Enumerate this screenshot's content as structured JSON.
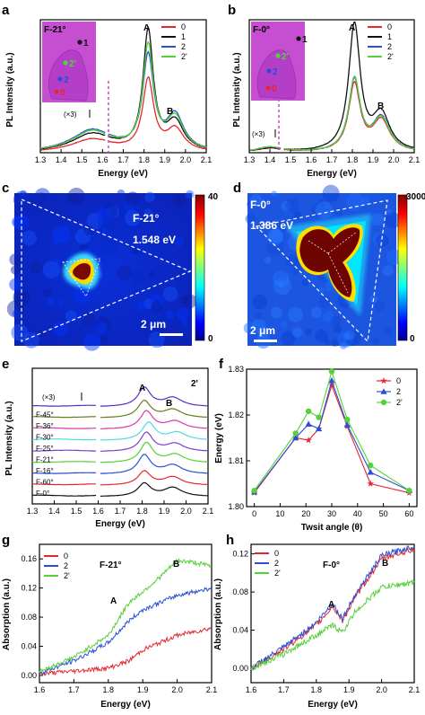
{
  "chart_data": [
    {
      "id": "a",
      "panel_label": "a",
      "type": "line",
      "sample_label": "F-21°",
      "xlabel": "Energy (eV)",
      "ylabel": "PL Intensity (a.u.)",
      "xlim": [
        1.3,
        2.1
      ],
      "xticks": [
        "1.3",
        "1.4",
        "1.5",
        "1.6",
        "1.7",
        "1.8",
        "1.9",
        "2.0",
        "2.1"
      ],
      "ylim": [
        0,
        1
      ],
      "scale_note": "(×3)",
      "break_x": 1.62,
      "peaks": [
        "A",
        "B"
      ],
      "legend": [
        "0",
        "1",
        "2",
        "2'"
      ],
      "series": [
        {
          "name": "0",
          "color": "#e8262e",
          "peaks": [
            [
              1.55,
              0.1,
              0.12
            ],
            [
              1.82,
              0.55,
              0.032
            ],
            [
              1.95,
              0.17,
              0.05
            ]
          ]
        },
        {
          "name": "1",
          "color": "#111111",
          "peaks": [
            [
              1.55,
              0.14,
              0.12
            ],
            [
              1.82,
              0.92,
              0.03
            ],
            [
              1.95,
              0.22,
              0.05
            ]
          ]
        },
        {
          "name": "2",
          "color": "#2a4fd6",
          "peaks": [
            [
              1.55,
              0.17,
              0.12
            ],
            [
              1.82,
              0.72,
              0.032
            ],
            [
              1.95,
              0.27,
              0.05
            ]
          ]
        },
        {
          "name": "2'",
          "color": "#55d13a",
          "peaks": [
            [
              1.55,
              0.16,
              0.12
            ],
            [
              1.82,
              0.8,
              0.031
            ],
            [
              1.95,
              0.25,
              0.05
            ]
          ]
        }
      ],
      "inset_points": [
        "1",
        "2'",
        "2",
        "0"
      ]
    },
    {
      "id": "b",
      "panel_label": "b",
      "type": "line",
      "sample_label": "F-0°",
      "xlabel": "Energy (eV)",
      "ylabel": "PL Intensity (a.u.)",
      "xlim": [
        1.3,
        2.1
      ],
      "xticks": [
        "1.3",
        "1.4",
        "1.5",
        "1.6",
        "1.7",
        "1.8",
        "1.9",
        "2.0",
        "2.1"
      ],
      "ylim": [
        0,
        1
      ],
      "scale_note": "(×3)",
      "break_x": 1.46,
      "peaks": [
        "A",
        "B"
      ],
      "legend": [
        "0",
        "1",
        "2",
        "2'"
      ],
      "series": [
        {
          "name": "0",
          "color": "#e8262e",
          "peaks": [
            [
              1.4,
              0.03,
              0.08
            ],
            [
              1.81,
              0.52,
              0.034
            ],
            [
              1.94,
              0.24,
              0.05
            ]
          ]
        },
        {
          "name": "1",
          "color": "#111111",
          "peaks": [
            [
              1.4,
              0.03,
              0.08
            ],
            [
              1.81,
              0.98,
              0.034
            ],
            [
              1.94,
              0.28,
              0.05
            ]
          ]
        },
        {
          "name": "2",
          "color": "#2a4fd6",
          "peaks": [
            [
              1.4,
              0.04,
              0.08
            ],
            [
              1.81,
              0.55,
              0.034
            ],
            [
              1.94,
              0.26,
              0.05
            ]
          ]
        },
        {
          "name": "2'",
          "color": "#55d13a",
          "peaks": [
            [
              1.4,
              0.04,
              0.08
            ],
            [
              1.81,
              0.56,
              0.034
            ],
            [
              1.94,
              0.25,
              0.05
            ]
          ]
        }
      ],
      "inset_points": [
        "1",
        "2'",
        "2",
        "0"
      ]
    },
    {
      "id": "c",
      "panel_label": "c",
      "type": "heatmap",
      "sample_label": "F-21°",
      "energy_label": "1.548 eV",
      "colorbar_max": "40",
      "colorbar_min": "0",
      "scalebar": "2 μm"
    },
    {
      "id": "d",
      "panel_label": "d",
      "type": "heatmap",
      "sample_label": "F-0°",
      "energy_label": "1.386 eV",
      "colorbar_max": "3000",
      "colorbar_min": "0",
      "scalebar": "2 μm"
    },
    {
      "id": "e",
      "panel_label": "e",
      "type": "line",
      "point_label": "2'",
      "xlabel": "Energy (eV)",
      "ylabel": "PL Intensity (a.u.)",
      "xlim": [
        1.3,
        2.1
      ],
      "xticks": [
        "1.3",
        "1.4",
        "1.5",
        "1.6",
        "1.7",
        "1.8",
        "1.9",
        "2.0",
        "2.1"
      ],
      "scale_note": "(×3)",
      "break_x": 1.6,
      "peaks": [
        "A",
        "B"
      ],
      "series": [
        {
          "name": "F-0°",
          "color": "#111111",
          "peaks": [
            [
              1.81,
              0.65,
              0.035
            ],
            [
              1.94,
              0.45,
              0.05
            ]
          ]
        },
        {
          "name": "F-60°",
          "color": "#e8262e",
          "peaks": [
            [
              1.81,
              0.7,
              0.035
            ],
            [
              1.94,
              0.42,
              0.05
            ]
          ]
        },
        {
          "name": "F-16°",
          "color": "#2a4fd6",
          "peaks": [
            [
              1.81,
              0.95,
              0.035
            ],
            [
              1.94,
              0.45,
              0.05
            ]
          ]
        },
        {
          "name": "F-21°",
          "color": "#55d13a",
          "peaks": [
            [
              1.82,
              1.0,
              0.035
            ],
            [
              1.95,
              0.42,
              0.05
            ]
          ]
        },
        {
          "name": "F-25°",
          "color": "#7d3fc9",
          "peaks": [
            [
              1.82,
              0.95,
              0.035
            ],
            [
              1.95,
              0.4,
              0.05
            ]
          ]
        },
        {
          "name": "F-30°",
          "color": "#4fd8e8",
          "peaks": [
            [
              1.83,
              0.9,
              0.035
            ],
            [
              1.96,
              0.4,
              0.05
            ]
          ]
        },
        {
          "name": "F-36°",
          "color": "#d93aa8",
          "peaks": [
            [
              1.82,
              0.9,
              0.035
            ],
            [
              1.95,
              0.4,
              0.05
            ]
          ]
        },
        {
          "name": "F-45°",
          "color": "#6b7a1e",
          "peaks": [
            [
              1.81,
              0.85,
              0.035
            ],
            [
              1.94,
              0.42,
              0.05
            ]
          ]
        },
        {
          "name": "",
          "color": "#5a2cc9",
          "peaks": [
            [
              1.81,
              0.95,
              0.035
            ],
            [
              1.94,
              0.45,
              0.05
            ]
          ]
        }
      ]
    },
    {
      "id": "f",
      "panel_label": "f",
      "type": "line",
      "xlabel": "Twsit angle (θ)",
      "ylabel": "Energy (eV)",
      "xlim": [
        -3,
        63
      ],
      "ylim": [
        1.8,
        1.83
      ],
      "xticks": [
        0,
        10,
        20,
        30,
        40,
        50,
        60
      ],
      "yticks": [
        "1.80",
        "1.81",
        "1.82",
        "1.83"
      ],
      "x": [
        0,
        16,
        21,
        25,
        30,
        36,
        45,
        60
      ],
      "series": [
        {
          "name": "0",
          "color": "#e8262e",
          "marker": "star",
          "values": [
            1.803,
            1.815,
            1.8145,
            1.817,
            1.8265,
            1.8175,
            1.805,
            1.803
          ]
        },
        {
          "name": "2",
          "color": "#2a4fd6",
          "marker": "triangle",
          "values": [
            1.8032,
            1.815,
            1.818,
            1.817,
            1.8275,
            1.8178,
            1.8075,
            1.8035
          ]
        },
        {
          "name": "2'",
          "color": "#55d13a",
          "marker": "circle",
          "values": [
            1.8035,
            1.816,
            1.8208,
            1.8195,
            1.8295,
            1.819,
            1.809,
            1.8035
          ]
        }
      ]
    },
    {
      "id": "g",
      "panel_label": "g",
      "type": "line",
      "sample_label": "F-21°",
      "xlabel": "Energy (eV)",
      "ylabel": "Absorption (a.u.)",
      "xlim": [
        1.6,
        2.1
      ],
      "ylim": [
        -0.01,
        0.18
      ],
      "xticks": [
        "1.6",
        "1.7",
        "1.8",
        "1.9",
        "2.0",
        "2.1"
      ],
      "yticks": [
        "0.00",
        "0.04",
        "0.08",
        "0.12",
        "0.16"
      ],
      "peaks": [
        "A",
        "B"
      ],
      "series": [
        {
          "name": "0",
          "color": "#e8262e",
          "anchors": [
            [
              1.6,
              0.002
            ],
            [
              1.7,
              0.006
            ],
            [
              1.8,
              0.01
            ],
            [
              1.86,
              0.02
            ],
            [
              1.9,
              0.035
            ],
            [
              1.95,
              0.045
            ],
            [
              2.0,
              0.055
            ],
            [
              2.1,
              0.065
            ]
          ]
        },
        {
          "name": "2",
          "color": "#2a4fd6",
          "anchors": [
            [
              1.6,
              0.003
            ],
            [
              1.7,
              0.02
            ],
            [
              1.8,
              0.045
            ],
            [
              1.86,
              0.075
            ],
            [
              1.9,
              0.09
            ],
            [
              1.95,
              0.1
            ],
            [
              2.0,
              0.11
            ],
            [
              2.1,
              0.12
            ]
          ]
        },
        {
          "name": "2'",
          "color": "#55d13a",
          "anchors": [
            [
              1.6,
              0.005
            ],
            [
              1.7,
              0.025
            ],
            [
              1.8,
              0.055
            ],
            [
              1.86,
              0.1
            ],
            [
              1.9,
              0.115
            ],
            [
              1.95,
              0.135
            ],
            [
              2.0,
              0.158
            ],
            [
              2.05,
              0.155
            ],
            [
              2.1,
              0.15
            ]
          ]
        }
      ]
    },
    {
      "id": "h",
      "panel_label": "h",
      "type": "line",
      "sample_label": "F-0°",
      "xlabel": "Energy (eV)",
      "ylabel": "Absorption (a.u.)",
      "xlim": [
        1.6,
        2.1
      ],
      "ylim": [
        -0.015,
        0.13
      ],
      "xticks": [
        "1.6",
        "1.7",
        "1.8",
        "1.9",
        "2.0",
        "2.1"
      ],
      "yticks": [
        "0.00",
        "0.04",
        "0.08",
        "0.12"
      ],
      "peaks": [
        "A",
        "B"
      ],
      "series": [
        {
          "name": "0",
          "color": "#e8262e",
          "anchors": [
            [
              1.6,
              0.0
            ],
            [
              1.7,
              0.02
            ],
            [
              1.8,
              0.045
            ],
            [
              1.85,
              0.065
            ],
            [
              1.88,
              0.05
            ],
            [
              1.92,
              0.075
            ],
            [
              2.0,
              0.115
            ],
            [
              2.1,
              0.125
            ]
          ]
        },
        {
          "name": "2",
          "color": "#2a4fd6",
          "anchors": [
            [
              1.6,
              0.0
            ],
            [
              1.7,
              0.022
            ],
            [
              1.8,
              0.048
            ],
            [
              1.85,
              0.068
            ],
            [
              1.88,
              0.052
            ],
            [
              1.92,
              0.078
            ],
            [
              2.0,
              0.118
            ],
            [
              2.1,
              0.128
            ]
          ]
        },
        {
          "name": "2'",
          "color": "#55d13a",
          "anchors": [
            [
              1.6,
              0.0
            ],
            [
              1.7,
              0.015
            ],
            [
              1.8,
              0.035
            ],
            [
              1.85,
              0.045
            ],
            [
              1.88,
              0.038
            ],
            [
              1.92,
              0.06
            ],
            [
              2.0,
              0.085
            ],
            [
              2.1,
              0.09
            ]
          ]
        }
      ]
    }
  ]
}
